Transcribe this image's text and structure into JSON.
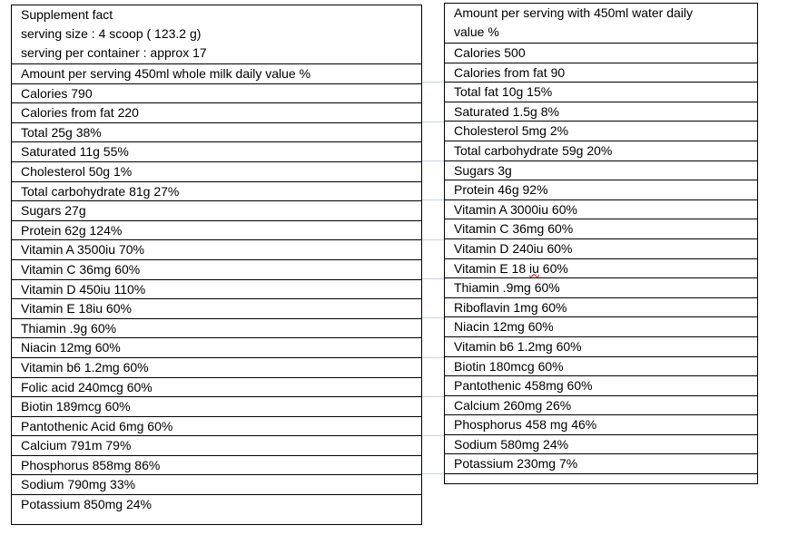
{
  "left": {
    "header_lines": [
      "Supplement fact",
      "serving size : 4 scoop ( 123.2 g)",
      "serving per container : approx 17"
    ],
    "rows": [
      "Amount per serving 450ml whole milk daily value %",
      "Calories 790",
      "Calories from fat 220",
      "Total 25g 38%",
      "Saturated 11g 55%",
      "Cholesterol 50g 1%",
      "Total carbohydrate 81g 27%",
      "Sugars 27g",
      "Protein 62g 124%",
      "Vitamin A  3500iu 70%",
      "Vitamin C 36mg 60%",
      "Vitamin D 450iu 110%",
      "Vitamin E 18iu 60%",
      "Thiamin .9g 60%",
      "Niacin  12mg 60%",
      "Vitamin b6 1.2mg 60%",
      "Folic acid 240mcg 60%",
      "Biotin  189mcg 60%",
      "Pantothenic  Acid 6mg 60%",
      "Calcium 791m 79%",
      "Phosphorus 858mg 86%",
      "Sodium 790mg 33%",
      "Potassium 850mg 24%"
    ]
  },
  "right": {
    "header_lines": [
      "Amount per serving with 450ml water daily",
      "value %"
    ],
    "rows": [
      "Calories 500",
      "Calories from fat 90",
      "Total fat 10g 15%",
      "Saturated 1.5g 8%",
      "Cholesterol 5mg 2%",
      "Total carbohydrate 59g 20%",
      "Sugars  3g",
      "Protein 46g 92%",
      "Vitamin A 3000iu 60%",
      "Vitamin C 36mg 60%",
      "Vitamin D 240iu 60%",
      "Vitamin E 18 iu 60%",
      "Thiamin .9mg 60%",
      "Riboflavin 1mg 60%",
      "Niacin 12mg 60%",
      "Vitamin b6 1.2mg 60%",
      "Biotin 180mcg 60%",
      "Pantothenic  458mg 60%",
      "Calcium 260mg 26%",
      "Phosphorus 458 mg 46%",
      "Sodium 580mg 24%",
      "Potassium 230mg 7%"
    ]
  }
}
